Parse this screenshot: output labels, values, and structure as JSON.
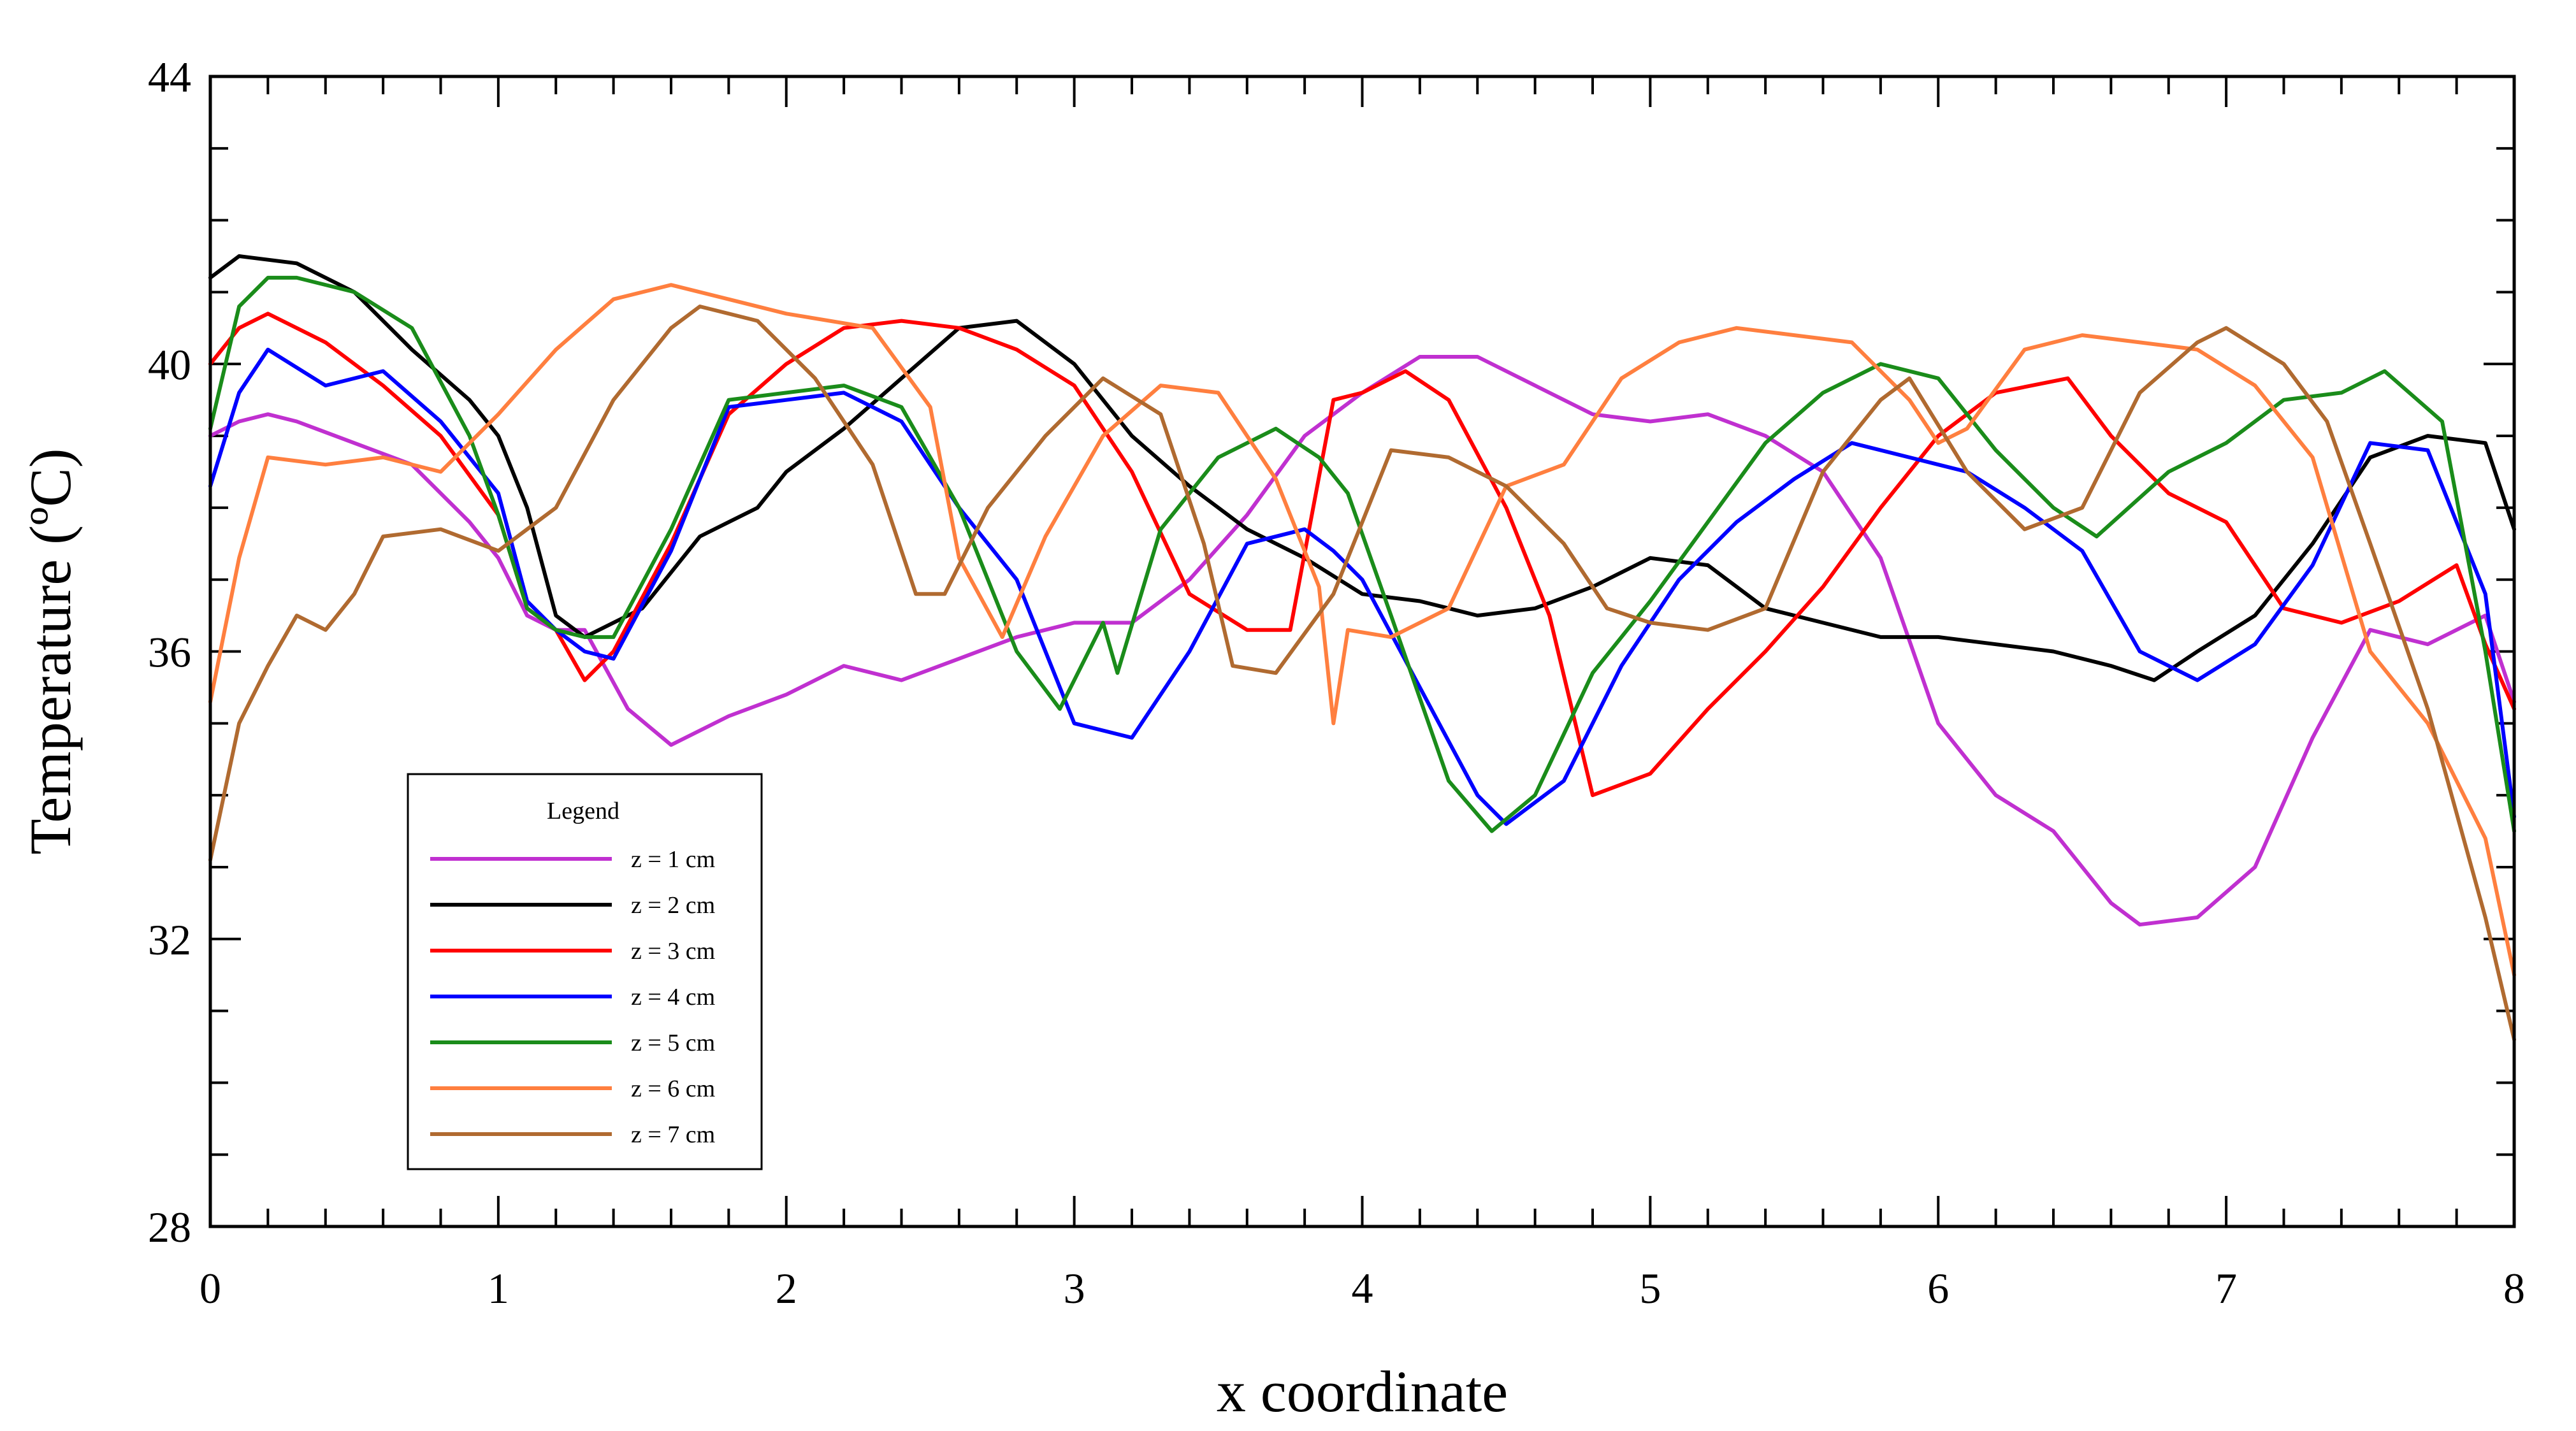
{
  "chart_data": {
    "type": "line",
    "title": "",
    "xlabel": "x coordinate",
    "ylabel": "Temperature (ºC)",
    "xlim": [
      0,
      8
    ],
    "ylim": [
      28,
      44
    ],
    "x_ticks": [
      0,
      1,
      2,
      3,
      4,
      5,
      6,
      7,
      8
    ],
    "x_tick_labels": [
      "0",
      "1",
      "2",
      "3",
      "4",
      "5",
      "6",
      "7",
      "8"
    ],
    "y_ticks": [
      28,
      32,
      36,
      40,
      44
    ],
    "y_tick_labels": [
      "28",
      "32",
      "36",
      "40",
      "44"
    ],
    "grid": false,
    "legend": {
      "title": "Legend",
      "placement": "lower-left"
    },
    "series": [
      {
        "name": "z = 1 cm",
        "color": "#c030d0",
        "x": [
          0,
          0.1,
          0.2,
          0.3,
          0.5,
          0.7,
          0.9,
          1.0,
          1.1,
          1.2,
          1.3,
          1.45,
          1.6,
          1.8,
          2.0,
          2.2,
          2.4,
          2.6,
          2.8,
          3.0,
          3.2,
          3.4,
          3.6,
          3.8,
          4.0,
          4.2,
          4.4,
          4.6,
          4.8,
          5.0,
          5.2,
          5.4,
          5.6,
          5.8,
          6.0,
          6.2,
          6.4,
          6.6,
          6.7,
          6.9,
          7.1,
          7.3,
          7.5,
          7.7,
          7.9,
          8.0
        ],
        "y": [
          39.0,
          39.2,
          39.3,
          39.2,
          38.9,
          38.6,
          37.8,
          37.3,
          36.5,
          36.3,
          36.3,
          35.2,
          34.7,
          35.1,
          35.4,
          35.8,
          35.6,
          35.9,
          36.2,
          36.4,
          36.4,
          37.0,
          37.9,
          39.0,
          39.6,
          40.1,
          40.1,
          39.7,
          39.3,
          39.2,
          39.3,
          39.0,
          38.5,
          37.3,
          35.0,
          34.0,
          33.5,
          32.5,
          32.2,
          32.3,
          33.0,
          34.8,
          36.3,
          36.1,
          36.5,
          35.3
        ]
      },
      {
        "name": "z = 2 cm",
        "color": "#000000",
        "x": [
          0,
          0.1,
          0.3,
          0.5,
          0.7,
          0.9,
          1.0,
          1.1,
          1.2,
          1.3,
          1.5,
          1.7,
          1.9,
          2.0,
          2.2,
          2.4,
          2.6,
          2.8,
          3.0,
          3.2,
          3.4,
          3.6,
          3.8,
          4.0,
          4.2,
          4.4,
          4.6,
          4.8,
          5.0,
          5.2,
          5.4,
          5.6,
          5.8,
          6.0,
          6.2,
          6.4,
          6.6,
          6.75,
          6.9,
          7.1,
          7.3,
          7.5,
          7.7,
          7.9,
          8.0
        ],
        "y": [
          41.2,
          41.5,
          41.4,
          41.0,
          40.2,
          39.5,
          39.0,
          38.0,
          36.5,
          36.2,
          36.6,
          37.6,
          38.0,
          38.5,
          39.1,
          39.8,
          40.5,
          40.6,
          40.0,
          39.0,
          38.3,
          37.7,
          37.3,
          36.8,
          36.7,
          36.5,
          36.6,
          36.9,
          37.3,
          37.2,
          36.6,
          36.4,
          36.2,
          36.2,
          36.1,
          36.0,
          35.8,
          35.6,
          36.0,
          36.5,
          37.5,
          38.7,
          39.0,
          38.9,
          37.7
        ]
      },
      {
        "name": "z = 3 cm",
        "color": "#ff0000",
        "x": [
          0,
          0.1,
          0.2,
          0.4,
          0.6,
          0.8,
          1.0,
          1.1,
          1.2,
          1.3,
          1.4,
          1.6,
          1.8,
          2.0,
          2.2,
          2.4,
          2.6,
          2.8,
          3.0,
          3.2,
          3.4,
          3.6,
          3.75,
          3.9,
          4.0,
          4.15,
          4.3,
          4.5,
          4.65,
          4.8,
          5.0,
          5.2,
          5.4,
          5.6,
          5.8,
          6.0,
          6.2,
          6.45,
          6.6,
          6.8,
          7.0,
          7.2,
          7.4,
          7.6,
          7.8,
          7.9,
          8.0
        ],
        "y": [
          40.0,
          40.5,
          40.7,
          40.3,
          39.7,
          39.0,
          37.9,
          36.6,
          36.3,
          35.6,
          36.0,
          37.5,
          39.3,
          40.0,
          40.5,
          40.6,
          40.5,
          40.2,
          39.7,
          38.5,
          36.8,
          36.3,
          36.3,
          39.5,
          39.6,
          39.9,
          39.5,
          38.0,
          36.5,
          34.0,
          34.3,
          35.2,
          36.0,
          36.9,
          38.0,
          39.0,
          39.6,
          39.8,
          39.0,
          38.2,
          37.8,
          36.6,
          36.4,
          36.7,
          37.2,
          36.1,
          35.2
        ]
      },
      {
        "name": "z = 4 cm",
        "color": "#0000ff",
        "x": [
          0,
          0.1,
          0.2,
          0.4,
          0.6,
          0.8,
          1.0,
          1.1,
          1.2,
          1.3,
          1.4,
          1.6,
          1.8,
          2.0,
          2.2,
          2.4,
          2.6,
          2.8,
          3.0,
          3.2,
          3.4,
          3.6,
          3.8,
          3.9,
          4.0,
          4.2,
          4.4,
          4.5,
          4.7,
          4.9,
          5.1,
          5.3,
          5.5,
          5.7,
          5.9,
          6.1,
          6.3,
          6.5,
          6.7,
          6.9,
          7.1,
          7.3,
          7.5,
          7.7,
          7.9,
          8.0
        ],
        "y": [
          38.3,
          39.6,
          40.2,
          39.7,
          39.9,
          39.2,
          38.2,
          36.7,
          36.3,
          36.0,
          35.9,
          37.4,
          39.4,
          39.5,
          39.6,
          39.2,
          38.0,
          37.0,
          35.0,
          34.8,
          36.0,
          37.5,
          37.7,
          37.4,
          37.0,
          35.5,
          34.0,
          33.6,
          34.2,
          35.8,
          37.0,
          37.8,
          38.4,
          38.9,
          38.7,
          38.5,
          38.0,
          37.4,
          36.0,
          35.6,
          36.1,
          37.2,
          38.9,
          38.8,
          36.8,
          33.7
        ]
      },
      {
        "name": "z = 5 cm",
        "color": "#1a8c1a",
        "x": [
          0,
          0.1,
          0.2,
          0.3,
          0.5,
          0.7,
          0.9,
          1.0,
          1.1,
          1.2,
          1.3,
          1.4,
          1.6,
          1.8,
          2.0,
          2.2,
          2.4,
          2.6,
          2.8,
          2.95,
          3.1,
          3.15,
          3.3,
          3.5,
          3.7,
          3.85,
          3.95,
          4.1,
          4.3,
          4.45,
          4.6,
          4.8,
          5.0,
          5.2,
          5.4,
          5.6,
          5.8,
          6.0,
          6.2,
          6.4,
          6.55,
          6.8,
          7.0,
          7.2,
          7.4,
          7.55,
          7.75,
          7.9,
          8.0
        ],
        "y": [
          39.1,
          40.8,
          41.2,
          41.2,
          41.0,
          40.5,
          39.0,
          37.9,
          36.6,
          36.3,
          36.2,
          36.2,
          37.7,
          39.5,
          39.6,
          39.7,
          39.4,
          38.0,
          36.0,
          35.2,
          36.4,
          35.7,
          37.7,
          38.7,
          39.1,
          38.7,
          38.2,
          36.5,
          34.2,
          33.5,
          34.0,
          35.7,
          36.7,
          37.8,
          38.9,
          39.6,
          40.0,
          39.8,
          38.8,
          38.0,
          37.6,
          38.5,
          38.9,
          39.5,
          39.6,
          39.9,
          39.2,
          36.0,
          33.5
        ]
      },
      {
        "name": "z = 6 cm",
        "color": "#ff7f3f",
        "x": [
          0,
          0.1,
          0.2,
          0.4,
          0.6,
          0.8,
          1.0,
          1.2,
          1.4,
          1.6,
          1.8,
          2.0,
          2.3,
          2.5,
          2.6,
          2.75,
          2.9,
          3.1,
          3.3,
          3.5,
          3.7,
          3.85,
          3.9,
          3.95,
          4.1,
          4.3,
          4.5,
          4.7,
          4.9,
          5.1,
          5.3,
          5.5,
          5.7,
          5.9,
          6.0,
          6.1,
          6.3,
          6.5,
          6.7,
          6.9,
          7.1,
          7.3,
          7.5,
          7.7,
          7.9,
          8.0
        ],
        "y": [
          35.3,
          37.3,
          38.7,
          38.6,
          38.7,
          38.5,
          39.3,
          40.2,
          40.9,
          41.1,
          40.9,
          40.7,
          40.5,
          39.4,
          37.3,
          36.2,
          37.6,
          39.0,
          39.7,
          39.6,
          38.4,
          36.9,
          35.0,
          36.3,
          36.2,
          36.6,
          38.3,
          38.6,
          39.8,
          40.3,
          40.5,
          40.4,
          40.3,
          39.5,
          38.9,
          39.1,
          40.2,
          40.4,
          40.3,
          40.2,
          39.7,
          38.7,
          36.0,
          35.0,
          33.4,
          31.5
        ]
      },
      {
        "name": "z = 7 cm",
        "color": "#b06a30",
        "x": [
          0,
          0.1,
          0.2,
          0.3,
          0.4,
          0.5,
          0.6,
          0.8,
          1.0,
          1.1,
          1.2,
          1.4,
          1.6,
          1.7,
          1.9,
          2.1,
          2.3,
          2.45,
          2.55,
          2.7,
          2.9,
          3.1,
          3.3,
          3.45,
          3.55,
          3.7,
          3.9,
          4.1,
          4.3,
          4.5,
          4.7,
          4.85,
          5.0,
          5.2,
          5.4,
          5.6,
          5.8,
          5.9,
          6.1,
          6.3,
          6.5,
          6.7,
          6.9,
          7.0,
          7.2,
          7.35,
          7.5,
          7.7,
          7.9,
          8.0
        ],
        "y": [
          33.1,
          35.0,
          35.8,
          36.5,
          36.3,
          36.8,
          37.6,
          37.7,
          37.4,
          37.7,
          38.0,
          39.5,
          40.5,
          40.8,
          40.6,
          39.8,
          38.6,
          36.8,
          36.8,
          38.0,
          39.0,
          39.8,
          39.3,
          37.5,
          35.8,
          35.7,
          36.8,
          38.8,
          38.7,
          38.3,
          37.5,
          36.6,
          36.4,
          36.3,
          36.6,
          38.5,
          39.5,
          39.8,
          38.5,
          37.7,
          38.0,
          39.6,
          40.3,
          40.5,
          40.0,
          39.2,
          37.5,
          35.2,
          32.3,
          30.6
        ]
      }
    ]
  }
}
